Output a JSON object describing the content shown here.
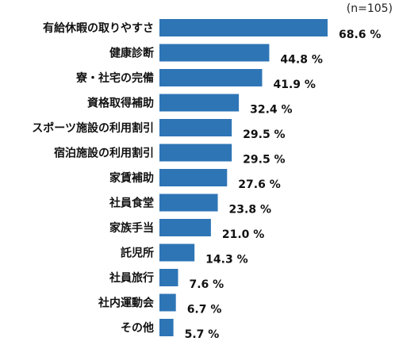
{
  "chart_data": {
    "type": "bar",
    "orientation": "horizontal",
    "note": "(n=105)",
    "bar_color": "#2E75B6",
    "value_suffix": " %",
    "xlim": [
      0,
      100
    ],
    "grid": false,
    "categories": [
      "有給休暇の取りやすさ",
      "健康診断",
      "寮・社宅の完備",
      "資格取得補助",
      "スポーツ施設の利用割引",
      "宿泊施設の利用割引",
      "家賃補助",
      "社員食堂",
      "家族手当",
      "託児所",
      "社員旅行",
      "社内運動会",
      "その他"
    ],
    "values": [
      68.6,
      44.8,
      41.9,
      32.4,
      29.5,
      29.5,
      27.6,
      23.8,
      21.0,
      14.3,
      7.6,
      6.7,
      5.7
    ]
  }
}
